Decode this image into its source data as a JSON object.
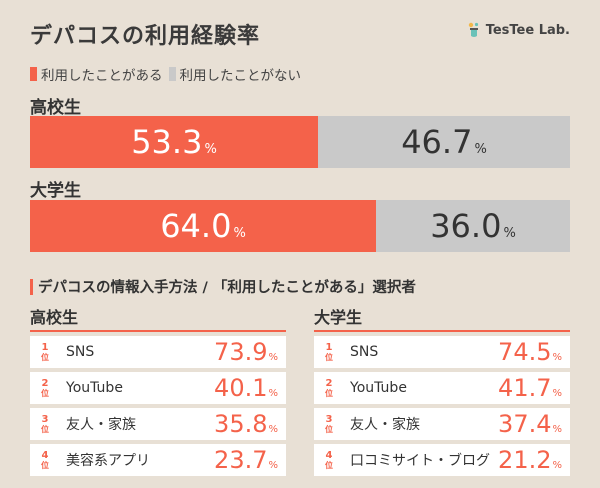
{
  "title": "デパコスの利用経験率",
  "brand": "TesTee Lab.",
  "colors": {
    "used": "#f4624a",
    "unused": "#c9c9c9",
    "accent": "#f4624a"
  },
  "legend": [
    {
      "label": "利用したことがある",
      "color": "#f4624a"
    },
    {
      "label": "利用したことがない",
      "color": "#c9c9c9"
    }
  ],
  "chart_data": [
    {
      "type": "bar",
      "orientation": "horizontal-stacked-100",
      "categories": [
        "高校生",
        "大学生"
      ],
      "series": [
        {
          "name": "利用したことがある",
          "values": [
            53.3,
            64.0
          ]
        },
        {
          "name": "利用したことがない",
          "values": [
            46.7,
            36.0
          ]
        }
      ],
      "value_labels": [
        [
          "53.3",
          "46.7"
        ],
        [
          "64.0",
          "36.0"
        ]
      ],
      "unit": "%",
      "title": "デパコスの利用経験率",
      "xlim": [
        0,
        100
      ]
    },
    {
      "type": "table",
      "title": "デパコスの情報入手方法 / 「利用したことがある」選択者",
      "rank_suffix": "位",
      "unit": "%",
      "groups": [
        {
          "name": "高校生",
          "rows": [
            {
              "rank": "1",
              "label": "SNS",
              "value": "73.9"
            },
            {
              "rank": "2",
              "label": "YouTube",
              "value": "40.1"
            },
            {
              "rank": "3",
              "label": "友人・家族",
              "value": "35.8"
            },
            {
              "rank": "4",
              "label": "美容系アプリ",
              "value": "23.7"
            }
          ]
        },
        {
          "name": "大学生",
          "rows": [
            {
              "rank": "1",
              "label": "SNS",
              "value": "74.5"
            },
            {
              "rank": "2",
              "label": "YouTube",
              "value": "41.7"
            },
            {
              "rank": "3",
              "label": "友人・家族",
              "value": "37.4"
            },
            {
              "rank": "4",
              "label": "口コミサイト・ブログ",
              "value": "21.2"
            }
          ]
        }
      ]
    }
  ]
}
